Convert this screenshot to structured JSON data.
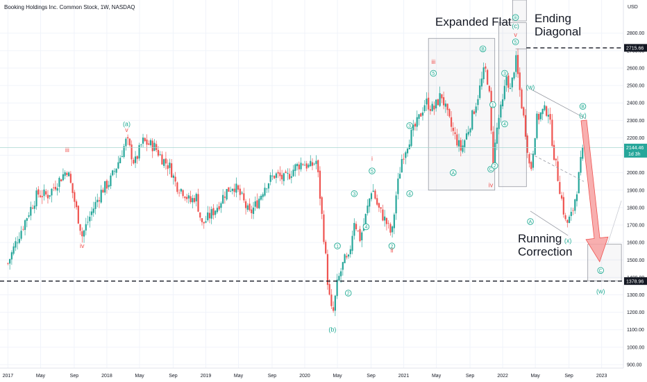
{
  "header": {
    "title": "Booking Holdings Inc. Common Stock, 1W, NASDAQ",
    "currency": "USD"
  },
  "chart_data": {
    "type": "candlestick",
    "x_ticks": [
      {
        "label": "2017",
        "t": 2017.0
      },
      {
        "label": "May",
        "t": 2017.33
      },
      {
        "label": "Sep",
        "t": 2017.67
      },
      {
        "label": "2018",
        "t": 2018.0
      },
      {
        "label": "May",
        "t": 2018.33
      },
      {
        "label": "Sep",
        "t": 2018.67
      },
      {
        "label": "2019",
        "t": 2019.0
      },
      {
        "label": "May",
        "t": 2019.33
      },
      {
        "label": "Sep",
        "t": 2019.67
      },
      {
        "label": "2020",
        "t": 2020.0
      },
      {
        "label": "May",
        "t": 2020.33
      },
      {
        "label": "Sep",
        "t": 2020.67
      },
      {
        "label": "2021",
        "t": 2021.0
      },
      {
        "label": "May",
        "t": 2021.33
      },
      {
        "label": "Sep",
        "t": 2021.67
      },
      {
        "label": "2022",
        "t": 2022.0
      },
      {
        "label": "May",
        "t": 2022.33
      },
      {
        "label": "Sep",
        "t": 2022.67
      },
      {
        "label": "2023",
        "t": 2023.0
      }
    ],
    "y_ticks": [
      "2800.00",
      "2700.00",
      "2600.00",
      "2500.00",
      "2400.00",
      "2300.00",
      "2200.00",
      "2100.00",
      "2000.00",
      "1900.00",
      "1800.00",
      "1700.00",
      "1600.00",
      "1500.00",
      "1400.00",
      "1300.00",
      "1200.00",
      "1100.00",
      "1000.00",
      "900.00"
    ],
    "y_tick_values": [
      2800,
      2700,
      2600,
      2500,
      2400,
      2300,
      2200,
      2100,
      2000,
      1900,
      1800,
      1700,
      1600,
      1500,
      1400,
      1300,
      1200,
      1100,
      1000,
      900
    ],
    "ylim": [
      880,
      2990
    ],
    "xlim": [
      2016.92,
      2023.22
    ],
    "colors": {
      "up": "#26a69a",
      "down": "#ef5350",
      "wave": "#22ab94",
      "wave_alt": "#ef5350",
      "box": "#9598a1",
      "arrow": "#f7a1a1"
    },
    "price_path": [
      [
        2017.0,
        1480
      ],
      [
        2017.08,
        1600
      ],
      [
        2017.2,
        1760
      ],
      [
        2017.3,
        1880
      ],
      [
        2017.4,
        1870
      ],
      [
        2017.52,
        1960
      ],
      [
        2017.6,
        2020
      ],
      [
        2017.66,
        1870
      ],
      [
        2017.75,
        1640
      ],
      [
        2017.85,
        1780
      ],
      [
        2017.95,
        1900
      ],
      [
        2018.03,
        1950
      ],
      [
        2018.1,
        2040
      ],
      [
        2018.2,
        2190
      ],
      [
        2018.28,
        2050
      ],
      [
        2018.36,
        2180
      ],
      [
        2018.48,
        2150
      ],
      [
        2018.56,
        2080
      ],
      [
        2018.64,
        2030
      ],
      [
        2018.7,
        1930
      ],
      [
        2018.78,
        1890
      ],
      [
        2018.84,
        1830
      ],
      [
        2018.9,
        1870
      ],
      [
        2018.96,
        1700
      ],
      [
        2019.05,
        1760
      ],
      [
        2019.12,
        1810
      ],
      [
        2019.2,
        1890
      ],
      [
        2019.28,
        1930
      ],
      [
        2019.36,
        1860
      ],
      [
        2019.44,
        1760
      ],
      [
        2019.52,
        1830
      ],
      [
        2019.6,
        1930
      ],
      [
        2019.7,
        1990
      ],
      [
        2019.8,
        1960
      ],
      [
        2019.9,
        2030
      ],
      [
        2019.98,
        2060
      ],
      [
        2020.05,
        2030
      ],
      [
        2020.12,
        2070
      ],
      [
        2020.2,
        1590
      ],
      [
        2020.24,
        1320
      ],
      [
        2020.28,
        1170
      ],
      [
        2020.33,
        1370
      ],
      [
        2020.4,
        1500
      ],
      [
        2020.44,
        1490
      ],
      [
        2020.5,
        1730
      ],
      [
        2020.56,
        1620
      ],
      [
        2020.62,
        1760
      ],
      [
        2020.68,
        1920
      ],
      [
        2020.74,
        1800
      ],
      [
        2020.82,
        1720
      ],
      [
        2020.88,
        1640
      ],
      [
        2020.92,
        1860
      ],
      [
        2020.98,
        2080
      ],
      [
        2021.06,
        2200
      ],
      [
        2021.14,
        2290
      ],
      [
        2021.22,
        2410
      ],
      [
        2021.3,
        2360
      ],
      [
        2021.38,
        2450
      ],
      [
        2021.44,
        2330
      ],
      [
        2021.5,
        2230
      ],
      [
        2021.58,
        2130
      ],
      [
        2021.66,
        2260
      ],
      [
        2021.74,
        2420
      ],
      [
        2021.82,
        2600
      ],
      [
        2021.86,
        2500
      ],
      [
        2021.9,
        2050
      ],
      [
        2021.95,
        2290
      ],
      [
        2022.0,
        2400
      ],
      [
        2022.04,
        2560
      ],
      [
        2022.08,
        2460
      ],
      [
        2022.13,
        2660
      ],
      [
        2022.18,
        2440
      ],
      [
        2022.24,
        2200
      ],
      [
        2022.28,
        1990
      ],
      [
        2022.34,
        2300
      ],
      [
        2022.4,
        2350
      ],
      [
        2022.46,
        2360
      ],
      [
        2022.52,
        2100
      ],
      [
        2022.58,
        1900
      ],
      [
        2022.64,
        1700
      ],
      [
        2022.7,
        1760
      ],
      [
        2022.76,
        1940
      ],
      [
        2022.81,
        2144
      ]
    ],
    "annotations": {
      "expanded_flat": "Expanded Flat",
      "ending_diagonal": "Ending Diagonal",
      "running_correction": "Running Correction"
    },
    "price_labels": [
      {
        "text": "2715.66",
        "value": 2715.66,
        "style": "dark"
      },
      {
        "text": "2144.46",
        "value": 2144.46,
        "style": "teal",
        "sub": "1d 3h"
      },
      {
        "text": "1378.96",
        "value": 1378.96,
        "style": "dark"
      }
    ],
    "wave_labels": [
      {
        "text": "(a)",
        "t": 2018.2,
        "v": 2280,
        "kind": "plain",
        "color": "wave"
      },
      {
        "text": "v",
        "t": 2018.2,
        "v": 2245,
        "kind": "plain",
        "color": "wave_alt"
      },
      {
        "text": "iii",
        "t": 2017.6,
        "v": 2130,
        "kind": "plain",
        "color": "wave_alt"
      },
      {
        "text": "iv",
        "t": 2017.75,
        "v": 1580,
        "kind": "plain",
        "color": "wave_alt"
      },
      {
        "text": "(b)",
        "t": 2020.28,
        "v": 1100,
        "kind": "plain",
        "color": "wave"
      },
      {
        "text": "1",
        "t": 2020.33,
        "v": 1580,
        "kind": "circle",
        "color": "wave"
      },
      {
        "text": "2",
        "t": 2020.44,
        "v": 1310,
        "kind": "circle",
        "color": "wave"
      },
      {
        "text": "3",
        "t": 2020.5,
        "v": 1880,
        "kind": "circle",
        "color": "wave"
      },
      {
        "text": "4",
        "t": 2020.62,
        "v": 1690,
        "kind": "circle",
        "color": "wave"
      },
      {
        "text": "5",
        "t": 2020.68,
        "v": 2010,
        "kind": "circle",
        "color": "wave"
      },
      {
        "text": "i",
        "t": 2020.68,
        "v": 2080,
        "kind": "plain",
        "color": "wave_alt"
      },
      {
        "text": "2",
        "t": 2020.88,
        "v": 1580,
        "kind": "circle",
        "color": "wave"
      },
      {
        "text": "ii",
        "t": 2020.88,
        "v": 1555,
        "kind": "plain",
        "color": "wave_alt"
      },
      {
        "text": "3",
        "t": 2021.06,
        "v": 2270,
        "kind": "circle",
        "color": "wave"
      },
      {
        "text": "4",
        "t": 2021.06,
        "v": 1880,
        "kind": "circle",
        "color": "wave"
      },
      {
        "text": "iii",
        "t": 2021.3,
        "v": 2635,
        "kind": "plain",
        "color": "wave_alt"
      },
      {
        "text": "5",
        "t": 2021.3,
        "v": 2570,
        "kind": "circle",
        "color": "wave"
      },
      {
        "text": "A",
        "t": 2021.5,
        "v": 2000,
        "kind": "circle",
        "color": "wave"
      },
      {
        "text": "B",
        "t": 2021.8,
        "v": 2710,
        "kind": "circle",
        "color": "wave"
      },
      {
        "text": "1",
        "t": 2021.9,
        "v": 2390,
        "kind": "circle",
        "color": "wave"
      },
      {
        "text": "C",
        "t": 2021.88,
        "v": 2020,
        "kind": "circle",
        "color": "wave"
      },
      {
        "text": "2",
        "t": 2021.92,
        "v": 2040,
        "kind": "circle",
        "color": "wave"
      },
      {
        "text": "iv",
        "t": 2021.88,
        "v": 1930,
        "kind": "plain",
        "color": "wave_alt"
      },
      {
        "text": "3",
        "t": 2022.02,
        "v": 2570,
        "kind": "circle",
        "color": "wave"
      },
      {
        "text": "4",
        "t": 2022.02,
        "v": 2280,
        "kind": "circle",
        "color": "wave"
      },
      {
        "text": "5",
        "t": 2022.13,
        "v": 2750,
        "kind": "circle",
        "color": "wave"
      },
      {
        "text": "v",
        "t": 2022.13,
        "v": 2790,
        "kind": "plain",
        "color": "wave_alt"
      },
      {
        "text": "(c)",
        "t": 2022.13,
        "v": 2840,
        "kind": "plain",
        "color": "wave"
      },
      {
        "text": "iii",
        "t": 2022.13,
        "v": 2890,
        "kind": "circle",
        "color": "wave"
      },
      {
        "text": "(w)",
        "t": 2022.28,
        "v": 2490,
        "kind": "plain",
        "color": "wave"
      },
      {
        "text": "A",
        "t": 2022.28,
        "v": 1720,
        "kind": "circle",
        "color": "wave"
      },
      {
        "text": "B",
        "t": 2022.81,
        "v": 2380,
        "kind": "circle",
        "color": "wave"
      },
      {
        "text": "(y)",
        "t": 2022.81,
        "v": 2330,
        "kind": "plain",
        "color": "wave"
      },
      {
        "text": "(x)",
        "t": 2022.66,
        "v": 1610,
        "kind": "plain",
        "color": "wave"
      },
      {
        "text": "C",
        "t": 2022.99,
        "v": 1440,
        "kind": "circle",
        "color": "wave"
      },
      {
        "text": "(w)",
        "t": 2022.99,
        "v": 1320,
        "kind": "plain",
        "color": "wave"
      }
    ],
    "boxes": [
      {
        "name": "expanded-flat-box",
        "t1": 2021.25,
        "t2": 2021.92,
        "v1": 1900,
        "v2": 2770
      },
      {
        "name": "ending-diagonal-box",
        "t1": 2021.96,
        "t2": 2022.24,
        "v1": 1920,
        "v2": 2860
      },
      {
        "name": "iii-top-box",
        "t1": 2022.1,
        "t2": 2022.24,
        "v1": 2870,
        "v2": 2990
      },
      {
        "name": "target-box",
        "t1": 2022.86,
        "t2": 2023.2,
        "v1": 1380,
        "v2": 1590
      }
    ],
    "trendlines": [
      {
        "name": "ending-diagonal-upper",
        "pts": [
          [
            2022.13,
            2710
          ],
          [
            2022.24,
            2710
          ]
        ],
        "dash": false
      },
      {
        "name": "running-upper",
        "pts": [
          [
            2022.28,
            2480
          ],
          [
            2022.84,
            2310
          ]
        ],
        "dash": false
      },
      {
        "name": "running-lower",
        "pts": [
          [
            2022.28,
            1780
          ],
          [
            2022.66,
            1640
          ]
        ],
        "dash": false
      },
      {
        "name": "running-mid",
        "pts": [
          [
            2022.28,
            2110
          ],
          [
            2022.82,
            1950
          ]
        ],
        "dash": true
      }
    ],
    "forecast_arrow": {
      "from": [
        2022.82,
        2300
      ],
      "to": [
        2022.98,
        1490
      ]
    }
  }
}
